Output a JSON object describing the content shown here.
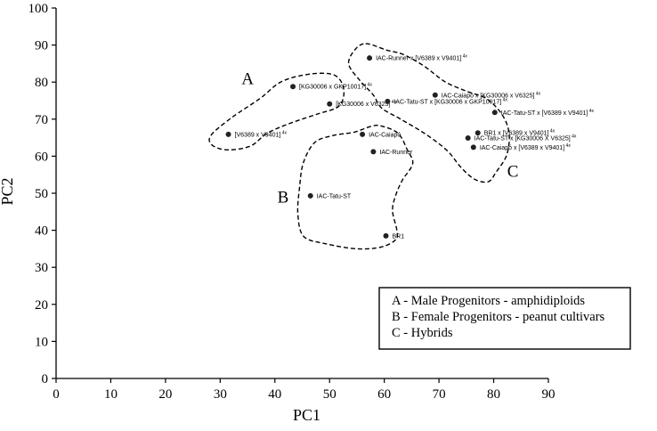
{
  "chart_data": {
    "type": "scatter",
    "xlabel": "PC1",
    "ylabel": "PC2",
    "xlim": [
      0,
      90
    ],
    "ylim": [
      0,
      100
    ],
    "xticks": [
      0,
      10,
      20,
      30,
      40,
      50,
      60,
      70,
      80,
      90
    ],
    "yticks": [
      0,
      10,
      20,
      30,
      40,
      50,
      60,
      70,
      80,
      90,
      100
    ],
    "grid": false,
    "points": [
      {
        "label": "IAC-Runner x [V6389 x V9401]",
        "sup": "4x",
        "x": 57.3,
        "y": 86.5
      },
      {
        "label": "[KG30006 x GKP10017]",
        "sup": "4x",
        "x": 43.3,
        "y": 78.8
      },
      {
        "label": "IAC-Caiapó x [KG30006 x V6325]",
        "sup": "4x",
        "x": 69.3,
        "y": 76.5
      },
      {
        "label": "[KG30006 x V6325]",
        "sup": "4x",
        "x": 50.0,
        "y": 74.1
      },
      {
        "label": "IAC-Tatu-ST x [KG30006 x GKP10017]",
        "sup": "4x",
        "x": 60.6,
        "y": 74.8
      },
      {
        "label": "IAC-Tatu-ST x [V6389 x V9401]",
        "sup": "4x",
        "x": 80.2,
        "y": 71.8
      },
      {
        "label": "[V6389 x V9401]",
        "sup": "4x",
        "x": 31.5,
        "y": 65.9
      },
      {
        "label": "IAC-Caiapó",
        "sup": "",
        "x": 56.0,
        "y": 65.9
      },
      {
        "label": "BR1 x [V6389 x V9401]",
        "sup": "4x",
        "x": 77.1,
        "y": 66.3
      },
      {
        "label": "IAC-Tatu-ST x [KG30006 X V6325]",
        "sup": "4x",
        "x": 75.3,
        "y": 64.9
      },
      {
        "label": "IAC-Caiapó x [V6389 x V9401]",
        "sup": "4x",
        "x": 76.3,
        "y": 62.4
      },
      {
        "label": "IAC-Runner",
        "sup": "",
        "x": 58.0,
        "y": 61.2
      },
      {
        "label": "IAC-Tatu-ST",
        "sup": "",
        "x": 46.5,
        "y": 49.3
      },
      {
        "label": "BR1",
        "sup": "",
        "x": 60.3,
        "y": 38.5
      }
    ],
    "groups": [
      {
        "letter": "A",
        "outline": [
          [
            28.3,
            65.6
          ],
          [
            32.1,
            70.4
          ],
          [
            37.3,
            75.6
          ],
          [
            41.3,
            80.2
          ],
          [
            46.6,
            82.2
          ],
          [
            51.0,
            81.8
          ],
          [
            52.6,
            77.9
          ],
          [
            51.7,
            73.5
          ],
          [
            47.8,
            71.4
          ],
          [
            42.8,
            68.9
          ],
          [
            38.6,
            66.2
          ],
          [
            35.6,
            62.8
          ],
          [
            31.5,
            61.7
          ],
          [
            28.6,
            62.9
          ]
        ]
      },
      {
        "letter": "B",
        "outline": [
          [
            59.3,
            68.2
          ],
          [
            62.5,
            66.2
          ],
          [
            64.2,
            61.7
          ],
          [
            65.2,
            58.0
          ],
          [
            63.3,
            53.5
          ],
          [
            62.1,
            49.5
          ],
          [
            61.5,
            45.3
          ],
          [
            62.3,
            40.0
          ],
          [
            62.1,
            37.5
          ],
          [
            59.5,
            35.5
          ],
          [
            55.0,
            35.0
          ],
          [
            49.5,
            36.3
          ],
          [
            45.3,
            38.3
          ],
          [
            44.2,
            44.3
          ],
          [
            44.5,
            51.4
          ],
          [
            45.2,
            58.2
          ],
          [
            47.3,
            63.7
          ],
          [
            50.7,
            65.6
          ],
          [
            54.5,
            66.5
          ],
          [
            57.5,
            68.0
          ]
        ]
      },
      {
        "letter": "C",
        "outline": [
          [
            56.6,
            90.4
          ],
          [
            60.5,
            88.6
          ],
          [
            63.4,
            87.5
          ],
          [
            67.2,
            84.4
          ],
          [
            71.1,
            80.1
          ],
          [
            75.1,
            77.5
          ],
          [
            78.7,
            75.5
          ],
          [
            81.5,
            71.3
          ],
          [
            82.8,
            66.3
          ],
          [
            82.4,
            60.4
          ],
          [
            80.5,
            55.8
          ],
          [
            79.0,
            53.1
          ],
          [
            76.5,
            53.8
          ],
          [
            74.0,
            57.0
          ],
          [
            71.5,
            61.5
          ],
          [
            67.5,
            66.0
          ],
          [
            63.0,
            70.0
          ],
          [
            59.5,
            73.0
          ],
          [
            58.0,
            76.5
          ],
          [
            55.5,
            80.5
          ],
          [
            53.5,
            84.8
          ],
          [
            54.5,
            88.5
          ]
        ]
      }
    ],
    "group_labels": [
      {
        "letter": "A",
        "x": 35.0,
        "y": 79.5
      },
      {
        "letter": "B",
        "x": 41.5,
        "y": 47.5
      },
      {
        "letter": "C",
        "x": 83.5,
        "y": 54.5
      }
    ],
    "legend": {
      "position": "bottom-right",
      "entries": [
        "A - Male Progenitors - amphidiploids",
        "B - Female Progenitors - peanut cultivars",
        "C - Hybrids"
      ]
    }
  }
}
